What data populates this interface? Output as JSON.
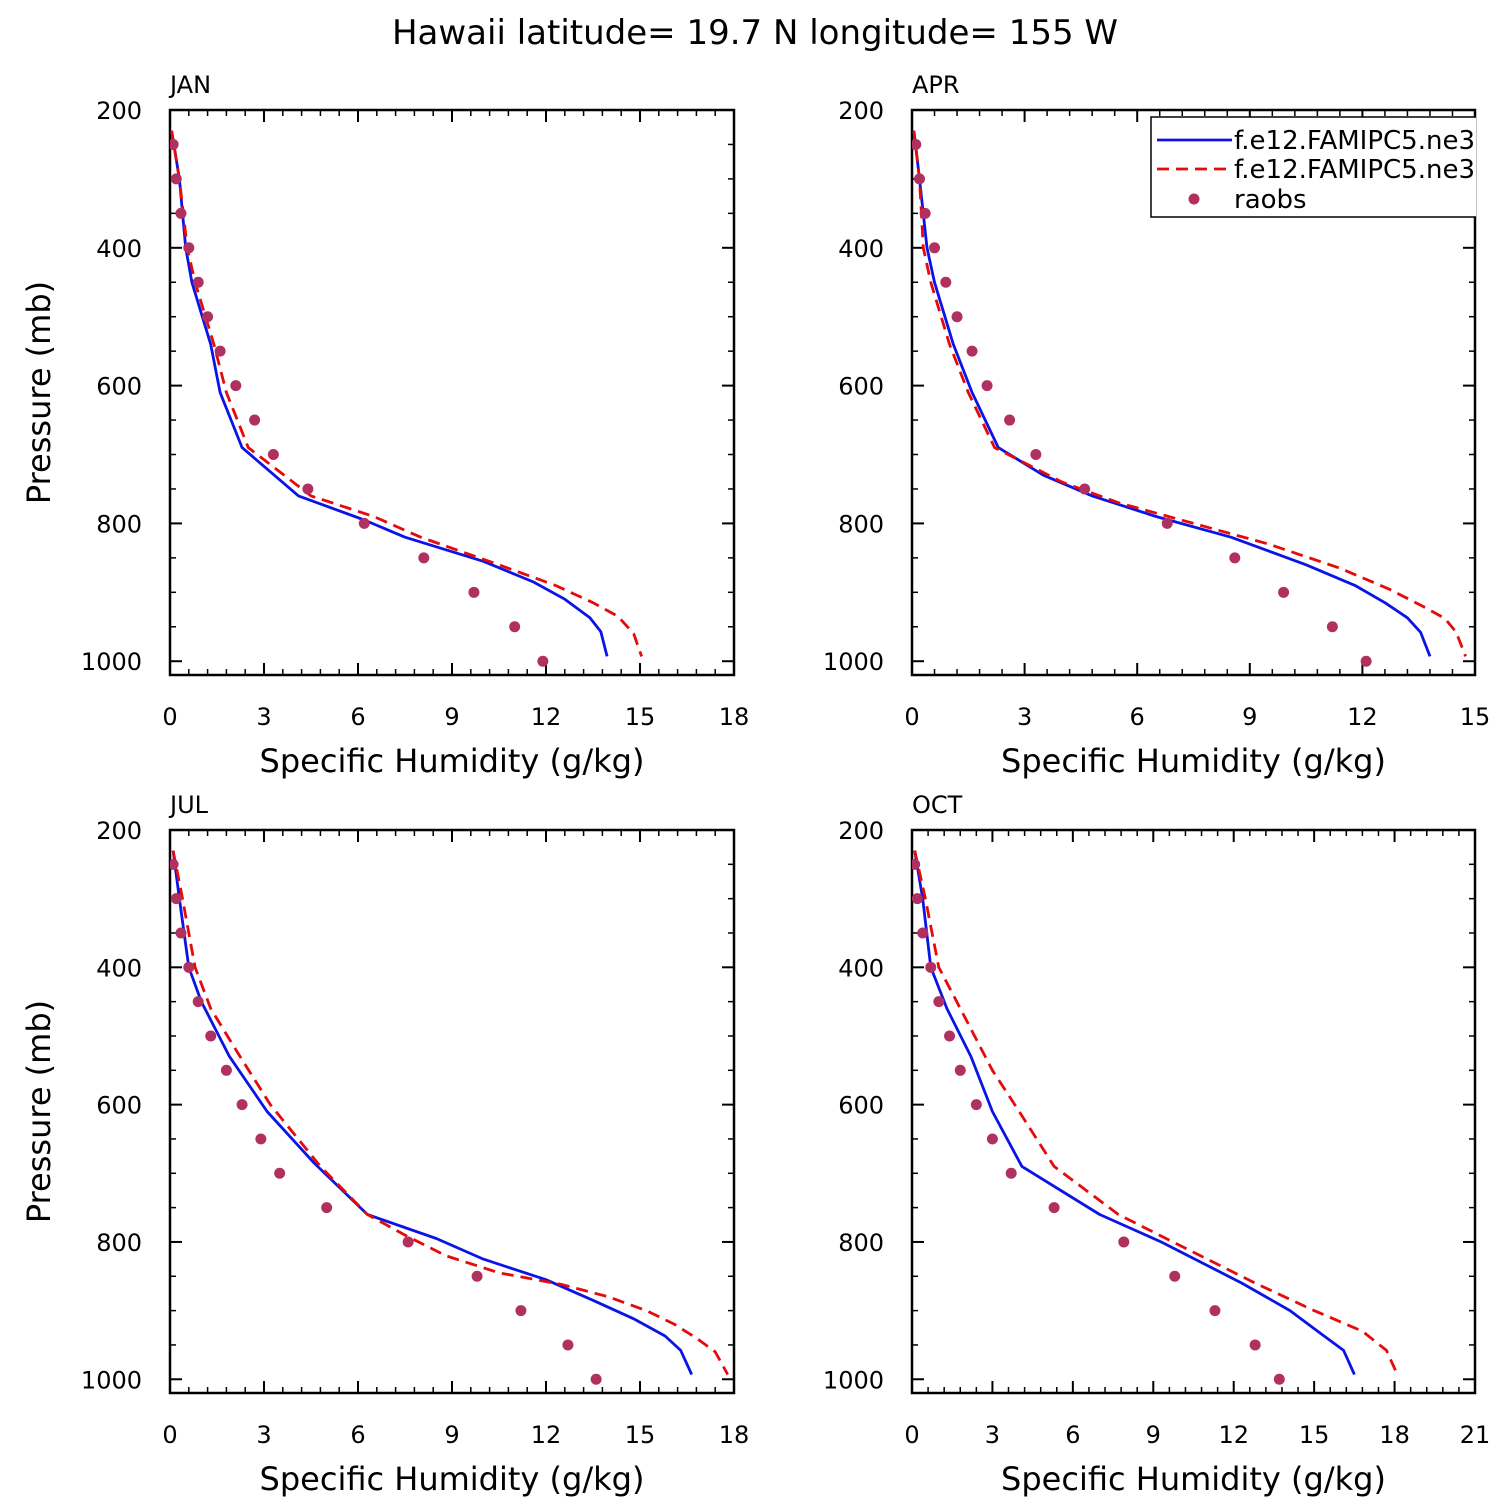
{
  "figure": {
    "title": "Hawaii  latitude= 19.7 N longitude= 155 W"
  },
  "legend": {
    "entries": [
      {
        "label": "f.e12.FAMIPC5.ne3",
        "color": "#0a14e6",
        "style": "solid"
      },
      {
        "label": "f.e12.FAMIPC5.ne3",
        "color": "#e60a0a",
        "style": "dashed"
      },
      {
        "label": "raobs",
        "color": "#b03060",
        "style": "dot"
      }
    ],
    "placement": "top-right of APR panel"
  },
  "chart_data": [
    {
      "type": "line",
      "title": "JAN",
      "xlabel": "Specific Humidity (g/kg)",
      "ylabel": "Pressure (mb)",
      "xlim": [
        0,
        18
      ],
      "ylim": [
        200,
        1020
      ],
      "y_reversed": true,
      "xticks": [
        0,
        3,
        6,
        9,
        12,
        15,
        18
      ],
      "yticks": [
        200,
        400,
        600,
        800,
        1000
      ],
      "series": [
        {
          "name": "f.e12.FAMIPC5.ne3",
          "color": "#0a14e6",
          "dash": "solid",
          "points": [
            [
              0.05,
              230
            ],
            [
              0.3,
              300
            ],
            [
              0.5,
              400
            ],
            [
              0.7,
              450
            ],
            [
              1.3,
              540
            ],
            [
              1.6,
              610
            ],
            [
              2.3,
              690
            ],
            [
              4.1,
              760
            ],
            [
              6.2,
              795
            ],
            [
              7.5,
              820
            ],
            [
              10,
              855
            ],
            [
              11.6,
              885
            ],
            [
              12.6,
              910
            ],
            [
              13.4,
              937
            ],
            [
              13.75,
              957
            ],
            [
              13.95,
              993
            ]
          ]
        },
        {
          "name": "f.e12.FAMIPC5.ne3",
          "color": "#e60a0a",
          "dash": "dashed",
          "points": [
            [
              0.05,
              230
            ],
            [
              0.3,
              300
            ],
            [
              0.55,
              400
            ],
            [
              0.8,
              450
            ],
            [
              1.4,
              540
            ],
            [
              1.8,
              610
            ],
            [
              2.5,
              690
            ],
            [
              4.5,
              760
            ],
            [
              6.5,
              790
            ],
            [
              8,
              820
            ],
            [
              10.5,
              860
            ],
            [
              12.3,
              890
            ],
            [
              13.5,
              915
            ],
            [
              14.3,
              935
            ],
            [
              14.8,
              960
            ],
            [
              15.05,
              993
            ]
          ]
        },
        {
          "name": "raobs",
          "color": "#b03060",
          "dash": "dot",
          "points": [
            [
              0.1,
              250
            ],
            [
              0.2,
              300
            ],
            [
              0.35,
              350
            ],
            [
              0.6,
              400
            ],
            [
              0.9,
              450
            ],
            [
              1.2,
              500
            ],
            [
              1.6,
              550
            ],
            [
              2.1,
              600
            ],
            [
              2.7,
              650
            ],
            [
              3.3,
              700
            ],
            [
              4.4,
              750
            ],
            [
              6.2,
              800
            ],
            [
              8.1,
              850
            ],
            [
              9.7,
              900
            ],
            [
              11,
              950
            ],
            [
              11.9,
              1000
            ]
          ]
        }
      ]
    },
    {
      "type": "line",
      "title": "APR",
      "xlabel": "Specific Humidity (g/kg)",
      "ylabel": "",
      "xlim": [
        0,
        15
      ],
      "ylim": [
        200,
        1020
      ],
      "y_reversed": true,
      "xticks": [
        0,
        3,
        6,
        9,
        12,
        15
      ],
      "yticks": [
        200,
        400,
        600,
        800,
        1000
      ],
      "series": [
        {
          "name": "f.e12.FAMIPC5.ne3",
          "color": "#0a14e6",
          "dash": "solid",
          "points": [
            [
              0.05,
              230
            ],
            [
              0.2,
              300
            ],
            [
              0.4,
              400
            ],
            [
              0.6,
              450
            ],
            [
              1.1,
              540
            ],
            [
              1.6,
              610
            ],
            [
              2.3,
              690
            ],
            [
              3.5,
              730
            ],
            [
              4.8,
              760
            ],
            [
              6.5,
              790
            ],
            [
              8.5,
              820
            ],
            [
              10.5,
              860
            ],
            [
              11.8,
              890
            ],
            [
              12.6,
              915
            ],
            [
              13.2,
              937
            ],
            [
              13.55,
              958
            ],
            [
              13.8,
              993
            ]
          ]
        },
        {
          "name": "f.e12.FAMIPC5.ne3",
          "color": "#e60a0a",
          "dash": "dashed",
          "points": [
            [
              0.05,
              230
            ],
            [
              0.2,
              300
            ],
            [
              0.3,
              400
            ],
            [
              0.5,
              450
            ],
            [
              1,
              540
            ],
            [
              1.5,
              610
            ],
            [
              2.2,
              690
            ],
            [
              4,
              740
            ],
            [
              5.5,
              770
            ],
            [
              7.5,
              800
            ],
            [
              9.5,
              830
            ],
            [
              11.4,
              865
            ],
            [
              12.7,
              895
            ],
            [
              13.6,
              920
            ],
            [
              14.2,
              938
            ],
            [
              14.5,
              958
            ],
            [
              14.75,
              993
            ]
          ]
        },
        {
          "name": "raobs",
          "color": "#b03060",
          "dash": "dot",
          "points": [
            [
              0.1,
              250
            ],
            [
              0.2,
              300
            ],
            [
              0.35,
              350
            ],
            [
              0.6,
              400
            ],
            [
              0.9,
              450
            ],
            [
              1.2,
              500
            ],
            [
              1.6,
              550
            ],
            [
              2,
              600
            ],
            [
              2.6,
              650
            ],
            [
              3.3,
              700
            ],
            [
              4.6,
              750
            ],
            [
              6.8,
              800
            ],
            [
              8.6,
              850
            ],
            [
              9.9,
              900
            ],
            [
              11.2,
              950
            ],
            [
              12.1,
              1000
            ]
          ]
        }
      ]
    },
    {
      "type": "line",
      "title": "JUL",
      "xlabel": "Specific Humidity (g/kg)",
      "ylabel": "Pressure (mb)",
      "xlim": [
        0,
        18
      ],
      "ylim": [
        200,
        1020
      ],
      "y_reversed": true,
      "xticks": [
        0,
        3,
        6,
        9,
        12,
        15,
        18
      ],
      "yticks": [
        200,
        400,
        600,
        800,
        1000
      ],
      "series": [
        {
          "name": "f.e12.FAMIPC5.ne3",
          "color": "#0a14e6",
          "dash": "solid",
          "points": [
            [
              0.1,
              230
            ],
            [
              0.3,
              300
            ],
            [
              0.6,
              400
            ],
            [
              1,
              450
            ],
            [
              1.9,
              530
            ],
            [
              3.1,
              610
            ],
            [
              4.6,
              685
            ],
            [
              6.3,
              760
            ],
            [
              8.5,
              795
            ],
            [
              10,
              825
            ],
            [
              12,
              855
            ],
            [
              13.5,
              885
            ],
            [
              14.8,
              912
            ],
            [
              15.8,
              937
            ],
            [
              16.3,
              958
            ],
            [
              16.65,
              993
            ]
          ]
        },
        {
          "name": "f.e12.FAMIPC5.ne3",
          "color": "#e60a0a",
          "dash": "dashed",
          "points": [
            [
              0.1,
              230
            ],
            [
              0.4,
              300
            ],
            [
              0.8,
              400
            ],
            [
              1.3,
              460
            ],
            [
              2.1,
              520
            ],
            [
              3.2,
              600
            ],
            [
              4.8,
              690
            ],
            [
              6.3,
              760
            ],
            [
              7.5,
              790
            ],
            [
              8.8,
              820
            ],
            [
              10.5,
              845
            ],
            [
              12.5,
              862
            ],
            [
              14,
              880
            ],
            [
              15.2,
              900
            ],
            [
              16.1,
              920
            ],
            [
              16.8,
              940
            ],
            [
              17.4,
              960
            ],
            [
              17.8,
              993
            ]
          ]
        },
        {
          "name": "raobs",
          "color": "#b03060",
          "dash": "dot",
          "points": [
            [
              0.1,
              250
            ],
            [
              0.2,
              300
            ],
            [
              0.35,
              350
            ],
            [
              0.6,
              400
            ],
            [
              0.9,
              450
            ],
            [
              1.3,
              500
            ],
            [
              1.8,
              550
            ],
            [
              2.3,
              600
            ],
            [
              2.9,
              650
            ],
            [
              3.5,
              700
            ],
            [
              5,
              750
            ],
            [
              7.6,
              800
            ],
            [
              9.8,
              850
            ],
            [
              11.2,
              900
            ],
            [
              12.7,
              950
            ],
            [
              13.6,
              1000
            ]
          ]
        }
      ]
    },
    {
      "type": "line",
      "title": "OCT",
      "xlabel": "Specific Humidity (g/kg)",
      "ylabel": "",
      "xlim": [
        0,
        21
      ],
      "ylim": [
        200,
        1020
      ],
      "y_reversed": true,
      "xticks": [
        0,
        3,
        6,
        9,
        12,
        15,
        18,
        21
      ],
      "yticks": [
        200,
        400,
        600,
        800,
        1000
      ],
      "series": [
        {
          "name": "f.e12.FAMIPC5.ne3",
          "color": "#0a14e6",
          "dash": "solid",
          "points": [
            [
              0.1,
              230
            ],
            [
              0.4,
              300
            ],
            [
              0.7,
              400
            ],
            [
              1.3,
              460
            ],
            [
              2.2,
              530
            ],
            [
              3,
              610
            ],
            [
              4.1,
              690
            ],
            [
              7,
              760
            ],
            [
              9.3,
              800
            ],
            [
              12.3,
              860
            ],
            [
              14.1,
              900
            ],
            [
              15.3,
              935
            ],
            [
              16.1,
              958
            ],
            [
              16.5,
              993
            ]
          ]
        },
        {
          "name": "f.e12.FAMIPC5.ne3",
          "color": "#e60a0a",
          "dash": "dashed",
          "points": [
            [
              0.1,
              230
            ],
            [
              0.5,
              300
            ],
            [
              1,
              400
            ],
            [
              1.8,
              460
            ],
            [
              3,
              550
            ],
            [
              4,
              610
            ],
            [
              5.3,
              690
            ],
            [
              7.7,
              760
            ],
            [
              10.5,
              815
            ],
            [
              12.8,
              860
            ],
            [
              15,
              900
            ],
            [
              16.8,
              930
            ],
            [
              17.7,
              958
            ],
            [
              18.1,
              993
            ]
          ]
        },
        {
          "name": "raobs",
          "color": "#b03060",
          "dash": "dot",
          "points": [
            [
              0.1,
              250
            ],
            [
              0.2,
              300
            ],
            [
              0.4,
              350
            ],
            [
              0.7,
              400
            ],
            [
              1,
              450
            ],
            [
              1.4,
              500
            ],
            [
              1.8,
              550
            ],
            [
              2.4,
              600
            ],
            [
              3,
              650
            ],
            [
              3.7,
              700
            ],
            [
              5.3,
              750
            ],
            [
              7.9,
              800
            ],
            [
              9.8,
              850
            ],
            [
              11.3,
              900
            ],
            [
              12.8,
              950
            ],
            [
              13.7,
              1000
            ]
          ]
        }
      ]
    }
  ]
}
